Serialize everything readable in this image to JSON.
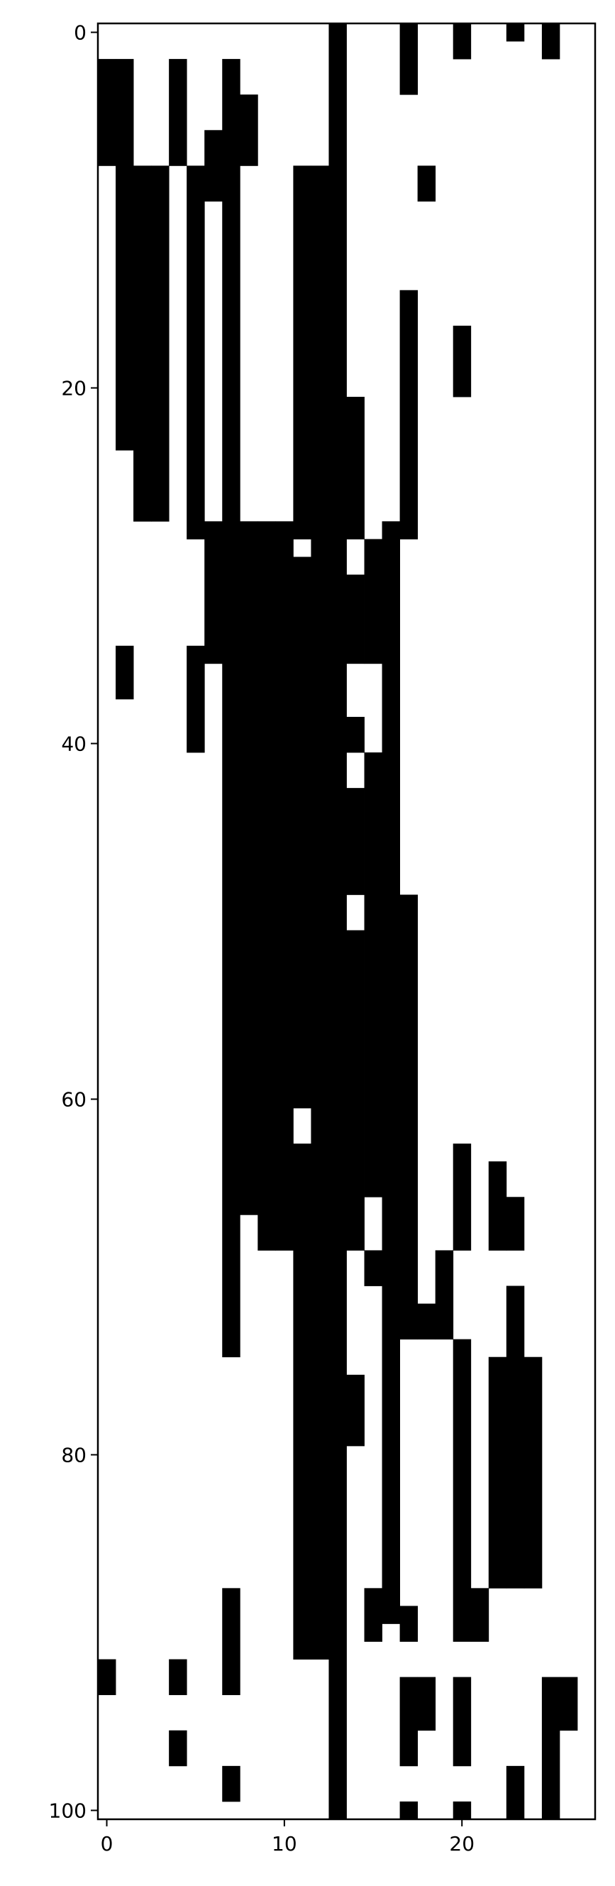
{
  "chart_data": {
    "type": "heatmap",
    "title": "",
    "xlabel": "",
    "ylabel": "",
    "n_cols": 28,
    "n_rows": 101,
    "x_range": [
      -0.5,
      27.5
    ],
    "y_range": [
      100.5,
      -0.5
    ],
    "x_ticks": [
      0,
      10,
      20
    ],
    "y_ticks": [
      0,
      20,
      40,
      60,
      80,
      100
    ],
    "grid": false,
    "legend": "none",
    "colors": {
      "filled": "#000000",
      "empty": "#ffffff"
    },
    "filled_runs": [
      {
        "col": 0,
        "rows": [
          [
            2,
            7
          ],
          [
            92,
            93
          ]
        ]
      },
      {
        "col": 1,
        "rows": [
          [
            2,
            23
          ],
          [
            35,
            37
          ]
        ]
      },
      {
        "col": 2,
        "rows": [
          [
            8,
            27
          ]
        ]
      },
      {
        "col": 3,
        "rows": [
          [
            8,
            27
          ]
        ]
      },
      {
        "col": 4,
        "rows": [
          [
            2,
            7
          ],
          [
            92,
            93
          ],
          [
            96,
            97
          ]
        ]
      },
      {
        "col": 5,
        "rows": [
          [
            8,
            28
          ],
          [
            35,
            40
          ]
        ]
      },
      {
        "col": 6,
        "rows": [
          [
            6,
            9
          ],
          [
            28,
            35
          ]
        ]
      },
      {
        "col": 7,
        "rows": [
          [
            2,
            74
          ],
          [
            88,
            93
          ],
          [
            98,
            99
          ]
        ]
      },
      {
        "col": 8,
        "rows": [
          [
            4,
            7
          ],
          [
            28,
            66
          ]
        ]
      },
      {
        "col": 9,
        "rows": [
          [
            28,
            68
          ]
        ]
      },
      {
        "col": 10,
        "rows": [
          [
            28,
            68
          ]
        ]
      },
      {
        "col": 11,
        "rows": [
          [
            8,
            28
          ],
          [
            30,
            60
          ],
          [
            63,
            91
          ]
        ]
      },
      {
        "col": 12,
        "rows": [
          [
            8,
            91
          ]
        ]
      },
      {
        "col": 13,
        "rows": [
          [
            0,
            100
          ]
        ]
      },
      {
        "col": 14,
        "rows": [
          [
            21,
            28
          ],
          [
            31,
            35
          ],
          [
            39,
            40
          ],
          [
            43,
            48
          ],
          [
            51,
            68
          ],
          [
            76,
            79
          ]
        ]
      },
      {
        "col": 15,
        "rows": [
          [
            29,
            35
          ],
          [
            41,
            65
          ],
          [
            69,
            70
          ],
          [
            88,
            90
          ]
        ]
      },
      {
        "col": 16,
        "rows": [
          [
            28,
            89
          ]
        ]
      },
      {
        "col": 17,
        "rows": [
          [
            0,
            3
          ],
          [
            15,
            28
          ],
          [
            49,
            73
          ],
          [
            89,
            90
          ],
          [
            93,
            97
          ],
          [
            100,
            100
          ]
        ]
      },
      {
        "col": 18,
        "rows": [
          [
            8,
            9
          ],
          [
            72,
            73
          ],
          [
            93,
            95
          ]
        ]
      },
      {
        "col": 19,
        "rows": [
          [
            69,
            73
          ]
        ]
      },
      {
        "col": 20,
        "rows": [
          [
            0,
            1
          ],
          [
            17,
            20
          ],
          [
            63,
            68
          ],
          [
            74,
            90
          ],
          [
            93,
            97
          ],
          [
            100,
            100
          ]
        ]
      },
      {
        "col": 21,
        "rows": [
          [
            88,
            90
          ]
        ]
      },
      {
        "col": 22,
        "rows": [
          [
            64,
            68
          ],
          [
            75,
            87
          ]
        ]
      },
      {
        "col": 23,
        "rows": [
          [
            0,
            0
          ],
          [
            66,
            68
          ],
          [
            71,
            87
          ],
          [
            98,
            100
          ]
        ]
      },
      {
        "col": 24,
        "rows": [
          [
            75,
            87
          ]
        ]
      },
      {
        "col": 25,
        "rows": [
          [
            0,
            1
          ],
          [
            93,
            100
          ]
        ]
      },
      {
        "col": 26,
        "rows": [
          [
            93,
            95
          ]
        ]
      },
      {
        "col": 27,
        "rows": []
      }
    ]
  }
}
